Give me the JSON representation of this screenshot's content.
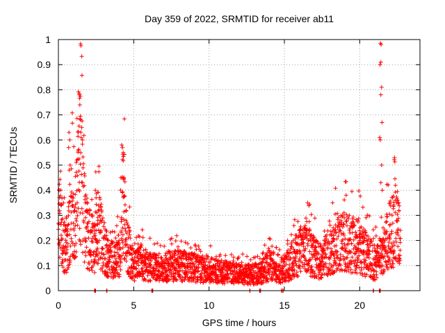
{
  "chart_data": {
    "type": "scatter",
    "title": "Day 359 of 2022, SRMTID for receiver ab11",
    "xlabel": "GPS time / hours",
    "ylabel": "SRMTID / TECUs",
    "xlim": [
      0,
      24
    ],
    "ylim": [
      0,
      1
    ],
    "xticks": [
      "0",
      "5",
      "10",
      "15",
      "20"
    ],
    "yticks": [
      "0",
      "0.1",
      "0.2",
      "0.3",
      "0.4",
      "0.5",
      "0.6",
      "0.7",
      "0.8",
      "0.9",
      "1"
    ],
    "grid": true,
    "marker": "+",
    "color": "#ff0000",
    "series": [
      {
        "name": "SRMTID",
        "envelope": {
          "x": [
            0,
            0.1,
            0.3,
            0.6,
            0.9,
            1.1,
            1.35,
            1.5,
            1.7,
            2.0,
            2.4,
            2.6,
            3.0,
            3.4,
            3.8,
            4.1,
            4.3,
            4.5,
            4.8,
            5.0,
            5.5,
            6.0,
            7.0,
            8.0,
            9.0,
            9.5,
            10.0,
            11.0,
            12.0,
            13.0,
            13.5,
            14.0,
            14.5,
            15.0,
            15.5,
            16.0,
            16.5,
            17.0,
            17.5,
            18.0,
            18.5,
            19.0,
            19.5,
            20.0,
            20.5,
            21.0,
            21.3,
            21.6,
            22.0,
            22.3,
            22.7
          ],
          "y": [
            0.25,
            0.33,
            0.18,
            0.2,
            0.35,
            0.3,
            0.55,
            0.5,
            0.3,
            0.22,
            0.2,
            0.3,
            0.18,
            0.14,
            0.13,
            0.16,
            0.42,
            0.22,
            0.14,
            0.1,
            0.12,
            0.1,
            0.1,
            0.11,
            0.1,
            0.09,
            0.09,
            0.08,
            0.07,
            0.07,
            0.08,
            0.11,
            0.08,
            0.09,
            0.13,
            0.17,
            0.18,
            0.14,
            0.12,
            0.18,
            0.2,
            0.21,
            0.2,
            0.19,
            0.15,
            0.12,
            0.14,
            0.15,
            0.25,
            0.27,
            0.22
          ]
        },
        "spikes": [
          {
            "x": 1.38,
            "y": 0.785
          },
          {
            "x": 1.4,
            "y": 0.78
          },
          {
            "x": 1.42,
            "y": 0.74
          },
          {
            "x": 1.47,
            "y": 0.68
          },
          {
            "x": 1.55,
            "y": 0.65
          },
          {
            "x": 1.6,
            "y": 0.6
          },
          {
            "x": 0.7,
            "y": 0.63
          },
          {
            "x": 0.75,
            "y": 0.6
          },
          {
            "x": 0.68,
            "y": 0.57
          },
          {
            "x": 0.78,
            "y": 0.5
          },
          {
            "x": 0.72,
            "y": 0.48
          },
          {
            "x": 4.2,
            "y": 0.58
          },
          {
            "x": 4.25,
            "y": 0.57
          },
          {
            "x": 4.3,
            "y": 0.55
          },
          {
            "x": 4.15,
            "y": 0.45
          },
          {
            "x": 4.35,
            "y": 0.45
          },
          {
            "x": 21.38,
            "y": 0.985
          },
          {
            "x": 21.42,
            "y": 0.98
          },
          {
            "x": 21.4,
            "y": 0.91
          },
          {
            "x": 21.35,
            "y": 0.9
          },
          {
            "x": 21.45,
            "y": 0.81
          },
          {
            "x": 21.4,
            "y": 0.78
          },
          {
            "x": 21.48,
            "y": 0.67
          },
          {
            "x": 21.33,
            "y": 0.61
          },
          {
            "x": 21.37,
            "y": 0.6
          },
          {
            "x": 21.45,
            "y": 0.5
          },
          {
            "x": 21.4,
            "y": 0.43
          },
          {
            "x": 21.5,
            "y": 0.4
          },
          {
            "x": 2.45,
            "y": 0.4
          },
          {
            "x": 2.5,
            "y": 0.37
          },
          {
            "x": 0.05,
            "y": 0.4
          },
          {
            "x": 19.1,
            "y": 0.38
          },
          {
            "x": 18.2,
            "y": 0.35
          },
          {
            "x": 22.0,
            "y": 0.35
          }
        ],
        "zero_points": [
          2.4,
          2.45,
          3.2,
          6.2,
          6.25,
          12.7,
          13.35,
          13.4,
          14.8,
          14.9,
          20.9,
          21.3,
          21.35
        ]
      }
    ]
  }
}
